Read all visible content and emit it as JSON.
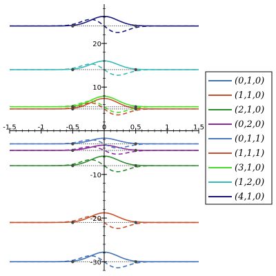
{
  "chart_data": {
    "type": "line",
    "title": "",
    "xlabel": "",
    "ylabel": "",
    "xlim": [
      -1.5,
      1.5
    ],
    "ylim": [
      -32,
      29
    ],
    "grid": false,
    "legend_position": "right",
    "x_ticks": [
      -1.5,
      -1,
      -0.5,
      0,
      0.5,
      1,
      1.5
    ],
    "x_tick_labels": [
      "-1.5",
      "-1",
      "-0.5",
      "0",
      "0.5",
      "1",
      "1.5"
    ],
    "y_ticks": [
      -30,
      -20,
      -10,
      10,
      20
    ],
    "y_tick_labels": [
      "-30",
      "-20",
      "-10",
      "10",
      "20"
    ],
    "series": [
      {
        "name": "(0,1,0)",
        "color": "#3f6fb5",
        "offset": -30,
        "solid_amp": 2.2,
        "dashed_amp": 3.2
      },
      {
        "name": "(1,1,0)",
        "color": "#c8502a",
        "offset": -21,
        "solid_amp": 2.2,
        "dashed_amp": 3.2
      },
      {
        "name": "(2,1,0)",
        "color": "#2e8b2e",
        "offset": -8,
        "solid_amp": 2.2,
        "dashed_amp": 3.2
      },
      {
        "name": "(0,2,0)",
        "color": "#8a2a9a",
        "offset": -4.5,
        "solid_amp": 1.2,
        "dashed_amp": 2.0
      },
      {
        "name": "(0,1,1)",
        "color": "#4a78c0",
        "offset": -3,
        "solid_amp": 1.3,
        "dashed_amp": 2.2
      },
      {
        "name": "(1,1,1)",
        "color": "#c8502a",
        "offset": 5,
        "solid_amp": 2.4,
        "dashed_amp": 3.2
      },
      {
        "name": "(3,1,0)",
        "color": "#44dd22",
        "offset": 5.5,
        "solid_amp": 2.4,
        "dashed_amp": 3.0
      },
      {
        "name": "(1,2,0)",
        "color": "#3ab9b9",
        "offset": 14,
        "solid_amp": 2.0,
        "dashed_amp": 3.0
      },
      {
        "name": "(4,1,0)",
        "color": "#16167a",
        "offset": 24,
        "solid_amp": 2.2,
        "dashed_amp": 3.5
      }
    ],
    "markers": {
      "x": [
        -0.5,
        0.5
      ]
    },
    "dotted_baselines": true
  }
}
